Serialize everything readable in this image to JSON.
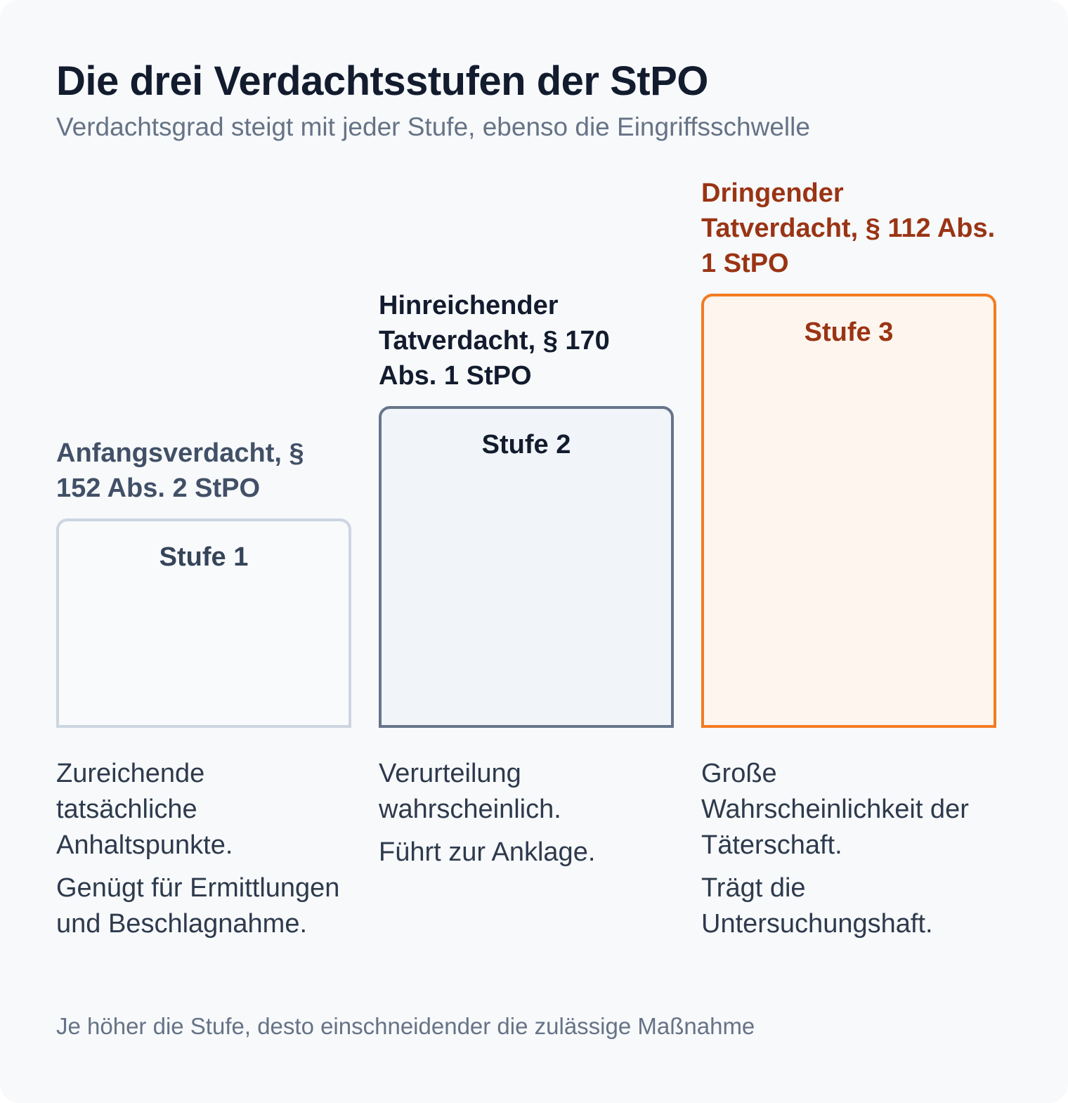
{
  "title": "Die drei Verdachtsstufen der StPO",
  "subtitle": "Verdachtsgrad steigt mit jeder Stufe, ebenso die Eingriffsschwelle",
  "stages": [
    {
      "name": "Anfangsverdacht, § 152 Abs. 2 StPO",
      "box_label": "Stufe 1",
      "level": 1,
      "description": [
        "Zureichende tatsächliche Anhaltspunkte.",
        "Genügt für Ermittlungen und Beschlagnahme."
      ],
      "color": "#ccd5e0"
    },
    {
      "name": "Hinreichender Tatverdacht, § 170 Abs. 1 StPO",
      "box_label": "Stufe 2",
      "level": 2,
      "description": [
        "Verurteilung wahrscheinlich.",
        "Führt zur Anklage."
      ],
      "color": "#66758a"
    },
    {
      "name": "Dringender Tatverdacht, § 112 Abs. 1 StPO",
      "box_label": "Stufe 3",
      "level": 3,
      "description": [
        "Große Wahrscheinlichkeit der Täterschaft.",
        "Trägt die Untersuchungshaft."
      ],
      "color": "#f37b22"
    }
  ],
  "footer": "Je höher die Stufe, desto einschneidender die zulässige Maßnahme"
}
